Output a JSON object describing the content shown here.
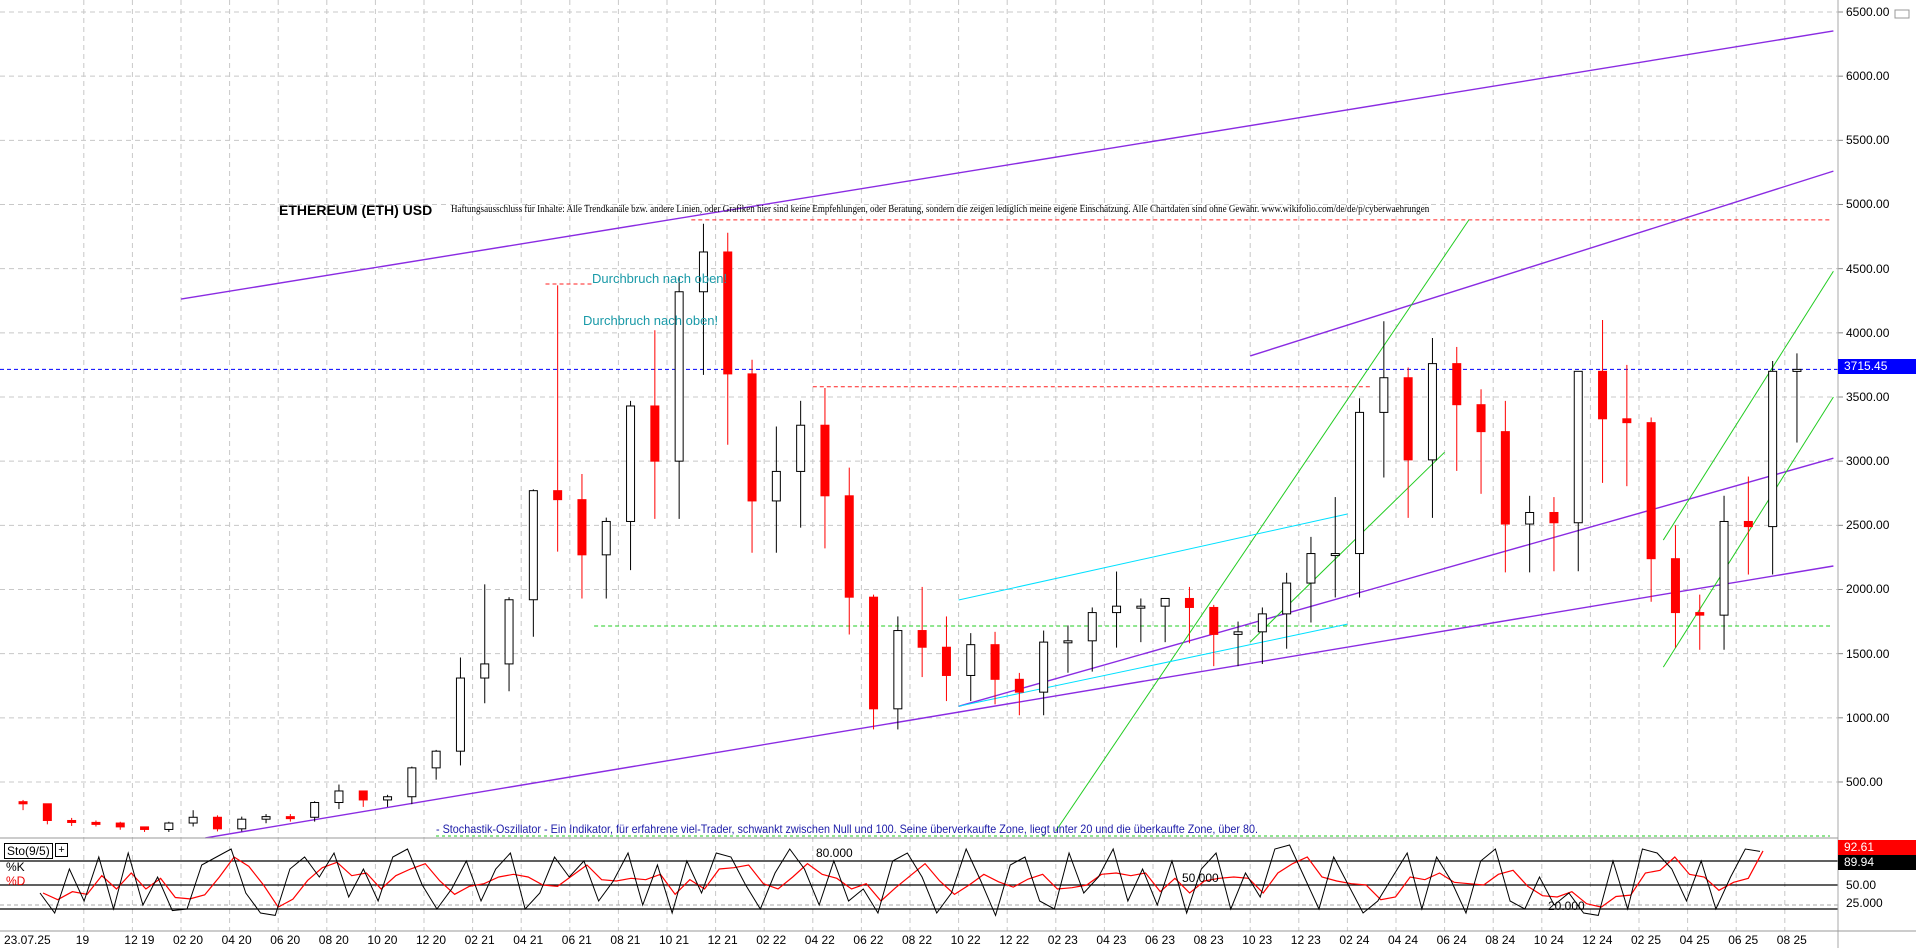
{
  "chart_data": {
    "type": "candlestick",
    "title": "ETHEREUM (ETH) USD",
    "disclaimer": "Haftungsausschluss für Inhalte: Alle Trendkanäle bzw. andere Linien, oder Grafiken hier sind keine Empfehlungen, oder Beratung, sondern die zeigen lediglich meine eigene Einschätzung. Alle Chartdaten sind ohne Gewähr.  www.wikifolio.com/de/de/p/cyberwaehrungen",
    "ylim": [
      0,
      6500
    ],
    "y_ticks": [
      "500.00",
      "1000.00",
      "1500.00",
      "2000.00",
      "2500.00",
      "3000.00",
      "3500.00",
      "4000.00",
      "4500.00",
      "5000.00",
      "5500.00",
      "6000.00",
      "6500.00"
    ],
    "x_tick_labels": [
      "23.07.25",
      "19",
      "12 19",
      "02 20",
      "04 20",
      "06 20",
      "08 20",
      "10 20",
      "12 20",
      "02 21",
      "04 21",
      "06 21",
      "08 21",
      "10 21",
      "12 21",
      "02 22",
      "04 22",
      "06 22",
      "08 22",
      "10 22",
      "12 22",
      "02 23",
      "04 23",
      "06 23",
      "08 23",
      "10 23",
      "12 23",
      "02 24",
      "04 24",
      "06 24",
      "08 24",
      "10 24",
      "12 24",
      "02 25",
      "04 25",
      "06 25",
      "08 25"
    ],
    "grid": true,
    "current_price": "3715.45",
    "colors": {
      "up": "#000000",
      "down": "#ff0000",
      "price_line": "#0000ff",
      "trend_purple": "#8000ff",
      "trend_green": "#00cc00",
      "trend_cyan": "#00e5ff"
    },
    "monthly_close": {
      "dates": [
        "2019-07",
        "2019-08",
        "2019-09",
        "2019-10",
        "2019-11",
        "2019-12",
        "2020-01",
        "2020-02",
        "2020-03",
        "2020-04",
        "2020-05",
        "2020-06",
        "2020-07",
        "2020-08",
        "2020-09",
        "2020-10",
        "2020-11",
        "2020-12",
        "2021-01",
        "2021-02",
        "2021-03",
        "2021-04",
        "2021-05",
        "2021-06",
        "2021-07",
        "2021-08",
        "2021-09",
        "2021-10",
        "2021-11",
        "2021-12",
        "2022-01",
        "2022-02",
        "2022-03",
        "2022-04",
        "2022-05",
        "2022-06",
        "2022-07",
        "2022-08",
        "2022-09",
        "2022-10",
        "2022-11",
        "2022-12",
        "2023-01",
        "2023-02",
        "2023-03",
        "2023-04",
        "2023-05",
        "2023-06",
        "2023-07",
        "2023-08",
        "2023-09",
        "2023-10",
        "2023-11",
        "2023-12",
        "2024-01",
        "2024-02",
        "2024-03",
        "2024-04",
        "2024-05",
        "2024-06",
        "2024-07",
        "2024-08",
        "2024-09",
        "2024-10",
        "2024-11",
        "2024-12",
        "2025-01",
        "2025-02",
        "2025-03",
        "2025-04",
        "2025-05",
        "2025-06",
        "2025-07",
        "2025-08"
      ],
      "close": [
        330,
        200,
        185,
        180,
        150,
        130,
        180,
        225,
        135,
        210,
        230,
        225,
        340,
        430,
        360,
        385,
        610,
        740,
        1310,
        1420,
        1920,
        2770,
        2700,
        2270,
        2530,
        3430,
        3000,
        4320,
        4630,
        3680,
        2690,
        2920,
        3280,
        2730,
        1940,
        1070,
        1680,
        1550,
        1330,
        1570,
        1300,
        1200,
        1590,
        1600,
        1820,
        1870,
        1870,
        1930,
        1860,
        1650,
        1670,
        1810,
        2050,
        2280,
        2280,
        3380,
        3650,
        3010,
        3760,
        3440,
        3230,
        2510,
        2600,
        2520,
        3700,
        3330,
        3300,
        2240,
        1820,
        1800,
        2530,
        2490,
        3700,
        3715
      ],
      "high": [
        360,
        230,
        220,
        200,
        190,
        150,
        190,
        280,
        240,
        230,
        250,
        250,
        350,
        480,
        400,
        400,
        620,
        750,
        1470,
        2040,
        1940,
        2780,
        4370,
        2900,
        2560,
        3470,
        4020,
        4440,
        4850,
        4780,
        3790,
        3270,
        3470,
        3570,
        2950,
        1960,
        1790,
        2020,
        1790,
        1660,
        1670,
        1350,
        1680,
        1720,
        1860,
        2140,
        1930,
        1930,
        2020,
        1880,
        1750,
        1860,
        2130,
        2410,
        2720,
        3490,
        4090,
        3730,
        3960,
        3890,
        3560,
        3470,
        2730,
        2720,
        3680,
        4100,
        3750,
        3340,
        2500,
        1960,
        2730,
        2880,
        3780,
        3840
      ]
    },
    "trend_lines": [
      {
        "color": "purple",
        "from": [
          "2020-02",
          4263
        ],
        "to": [
          "2025-10",
          6352
        ]
      },
      {
        "color": "purple",
        "from": [
          "2020-03",
          64
        ],
        "to": [
          "2025-10",
          2183
        ]
      },
      {
        "color": "purple",
        "from": [
          "2023-10",
          3820
        ],
        "to": [
          "2025-10",
          5260
        ]
      },
      {
        "color": "purple",
        "from": [
          "2022-10",
          1090
        ],
        "to": [
          "2025-10",
          3023
        ]
      },
      {
        "color": "green",
        "from": [
          "2023-02",
          118
        ],
        "to": [
          "2024-07",
          4880
        ]
      },
      {
        "color": "green",
        "from": [
          "2023-10",
          1590
        ],
        "to": [
          "2024-06",
          3070
        ]
      },
      {
        "color": "green",
        "from": [
          "2025-03",
          2385
        ],
        "to": [
          "2025-10",
          4480
        ]
      },
      {
        "color": "green",
        "from": [
          "2025-03",
          1395
        ],
        "to": [
          "2025-10",
          3500
        ]
      },
      {
        "color": "cyan",
        "from": [
          "2022-10",
          1918
        ],
        "to": [
          "2024-02",
          2588
        ]
      },
      {
        "color": "cyan",
        "from": [
          "2022-10",
          1090
        ],
        "to": [
          "2024-02",
          1730
        ]
      }
    ],
    "horizontal_levels": [
      {
        "color": "red",
        "price": 4880,
        "from": "2021-11"
      },
      {
        "color": "green",
        "price": 1715,
        "from": "2021-07"
      },
      {
        "color": "red",
        "price": 4380,
        "from": "2021-05",
        "to": "2021-07"
      },
      {
        "color": "red",
        "price": 3580,
        "from": "2022-04",
        "to": "2024-03"
      }
    ],
    "annotations": [
      "Durchbruch nach oben!",
      "Durchbruch nach oben!"
    ],
    "stochastic": {
      "label": "Sto(9/5)",
      "k_label": "%K",
      "d_label": "%D",
      "note": "- Stochastik-Oszillator - Ein Indikator, für erfahrene viel-Trader, schwankt zwischen Null und 100. Seine überverkaufte Zone, liegt unter 20 und die überkaufte Zone, über 80.",
      "levels": [
        80,
        50,
        20
      ],
      "level_labels": [
        "80.000",
        "50.000",
        "20.000"
      ],
      "axis_labels": [
        "50.00",
        "25.000"
      ],
      "last_values": [
        "92.61",
        "89.94"
      ],
      "k": [
        40,
        15,
        70,
        30,
        85,
        20,
        90,
        25,
        60,
        18,
        20,
        75,
        85,
        95,
        40,
        15,
        12,
        70,
        85,
        60,
        90,
        35,
        70,
        30,
        85,
        95,
        50,
        20,
        45,
        80,
        30,
        70,
        90,
        20,
        40,
        85,
        60,
        80,
        30,
        55,
        90,
        25,
        75,
        15,
        80,
        40,
        90,
        85,
        50,
        20,
        65,
        95,
        70,
        25,
        80,
        30,
        45,
        15,
        80,
        90,
        60,
        15,
        40,
        95,
        55,
        12,
        75,
        85,
        30,
        20,
        90,
        40,
        60,
        95,
        30,
        70,
        25,
        80,
        15,
        70,
        90,
        20,
        65,
        35,
        95,
        100,
        60,
        20,
        85,
        50,
        15,
        30,
        60,
        90,
        20,
        85,
        55,
        15,
        80,
        95,
        30,
        20,
        60,
        25,
        40,
        15,
        12,
        80,
        20,
        95,
        90,
        70,
        30,
        80,
        20,
        60,
        95,
        92
      ]
    }
  }
}
